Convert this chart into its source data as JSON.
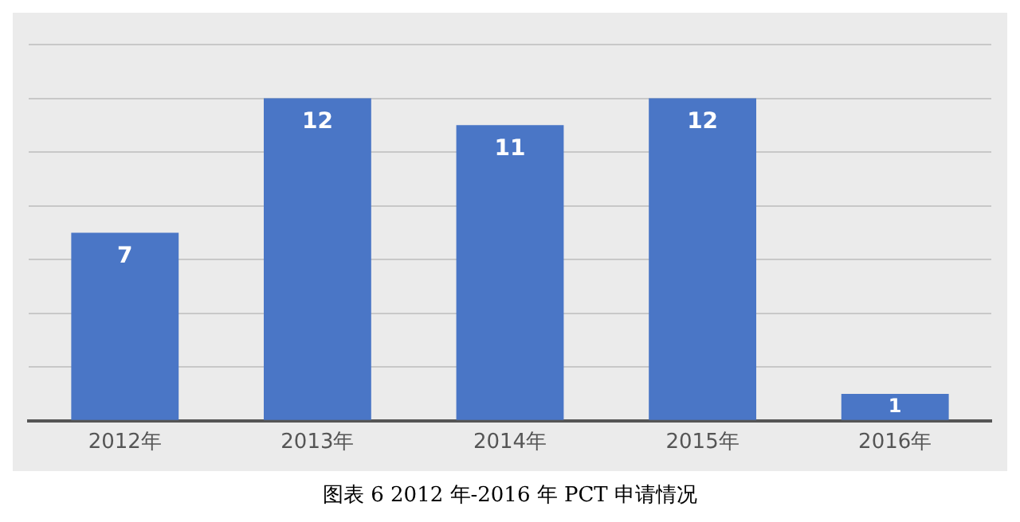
{
  "chart_data": {
    "type": "bar",
    "title": "图表 6 2012 年-2016 年 PCT 申请情况",
    "categories": [
      "2012年",
      "2013年",
      "2014年",
      "2015年",
      "2016年"
    ],
    "values": [
      7,
      12,
      11,
      12,
      1
    ],
    "color": "#4a76c6",
    "ylim": [
      0,
      14
    ],
    "yticks": [
      {
        "value": 0,
        "label": null
      },
      {
        "value": 2,
        "label": null
      },
      {
        "value": 4,
        "label": null
      },
      {
        "value": 6,
        "label": null
      },
      {
        "value": 8,
        "label": null
      },
      {
        "value": 10,
        "label": null
      },
      {
        "value": 12,
        "label": null
      },
      {
        "value": 14,
        "label": null
      }
    ],
    "grid": "y",
    "tick_labels": "x",
    "data_labels": true,
    "legend": false
  }
}
